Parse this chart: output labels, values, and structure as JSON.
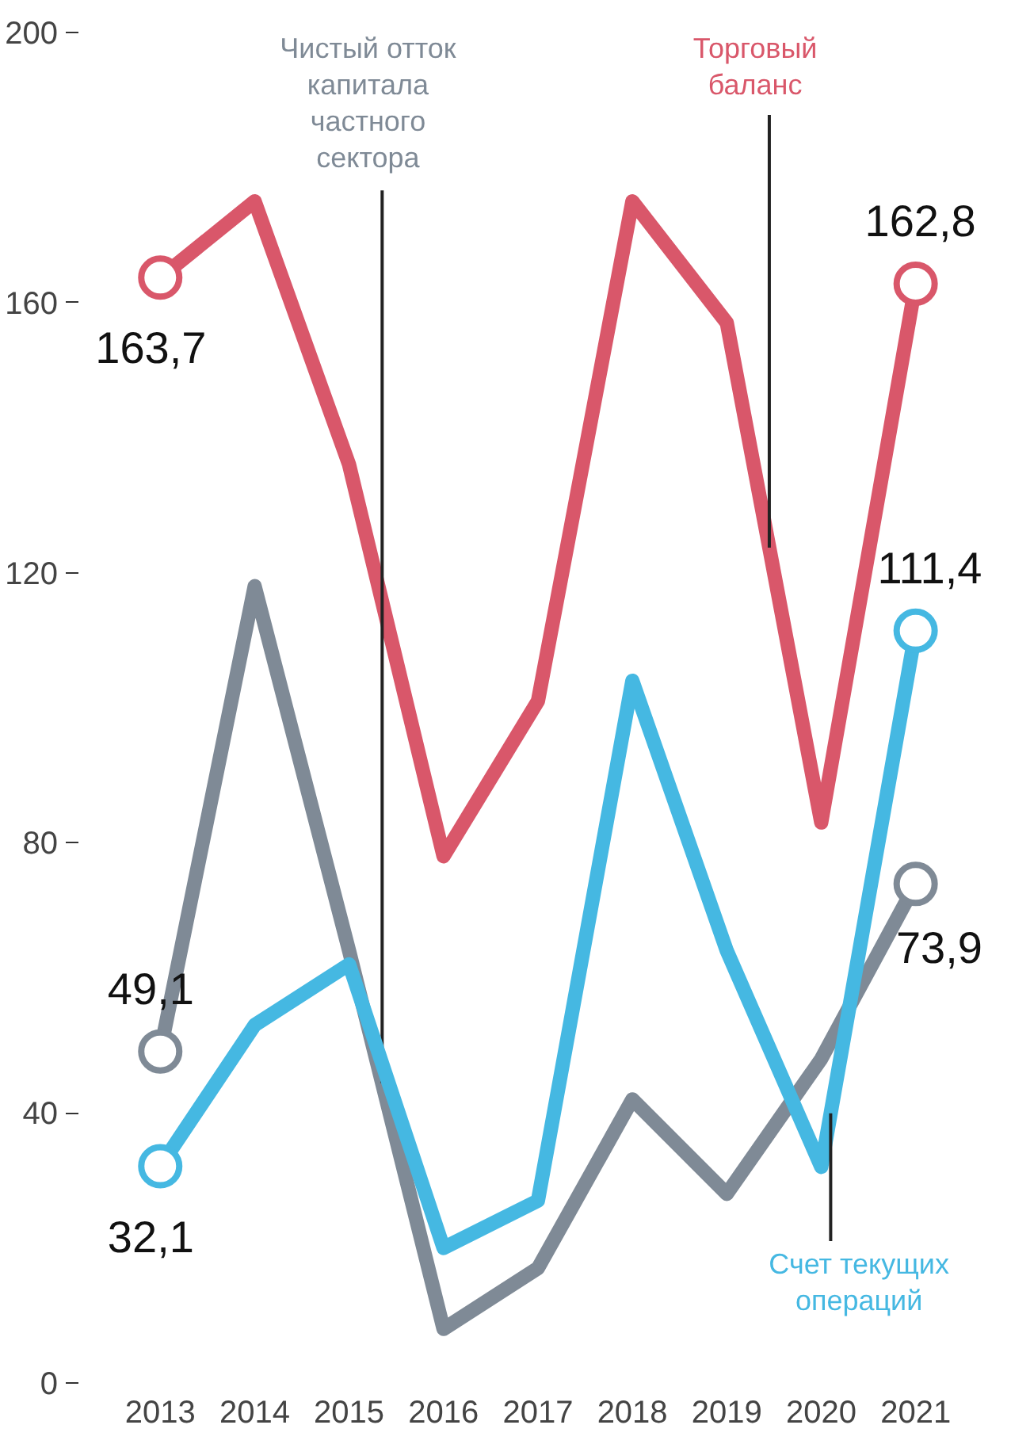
{
  "chart_data": {
    "type": "line",
    "categories": [
      "2013",
      "2014",
      "2015",
      "2016",
      "2017",
      "2018",
      "2019",
      "2020",
      "2021"
    ],
    "series": [
      {
        "name": "Торговый баланс",
        "color": "#d9576a",
        "values": [
          163.7,
          175,
          136,
          78,
          101,
          175,
          157,
          83,
          162.8
        ],
        "value_labels": [
          "163,7",
          null,
          null,
          null,
          null,
          null,
          null,
          null,
          "162,8"
        ]
      },
      {
        "name": "Чистый отток капитала частного сектора",
        "color": "#7f8a96",
        "values": [
          49.1,
          118,
          64,
          8,
          17,
          42,
          28,
          48,
          73.9
        ],
        "value_labels": [
          "49,1",
          null,
          null,
          null,
          null,
          null,
          null,
          null,
          "73,9"
        ]
      },
      {
        "name": "Счет текущих операций",
        "color": "#45b8e2",
        "values": [
          32.1,
          53,
          62,
          20,
          27,
          104,
          64,
          32,
          111.4
        ],
        "value_labels": [
          "32,1",
          null,
          null,
          null,
          null,
          null,
          null,
          null,
          "111,4"
        ]
      }
    ],
    "ylim": [
      0,
      200
    ],
    "yticks": [
      0,
      40,
      80,
      120,
      160,
      200
    ],
    "grid": false
  }
}
